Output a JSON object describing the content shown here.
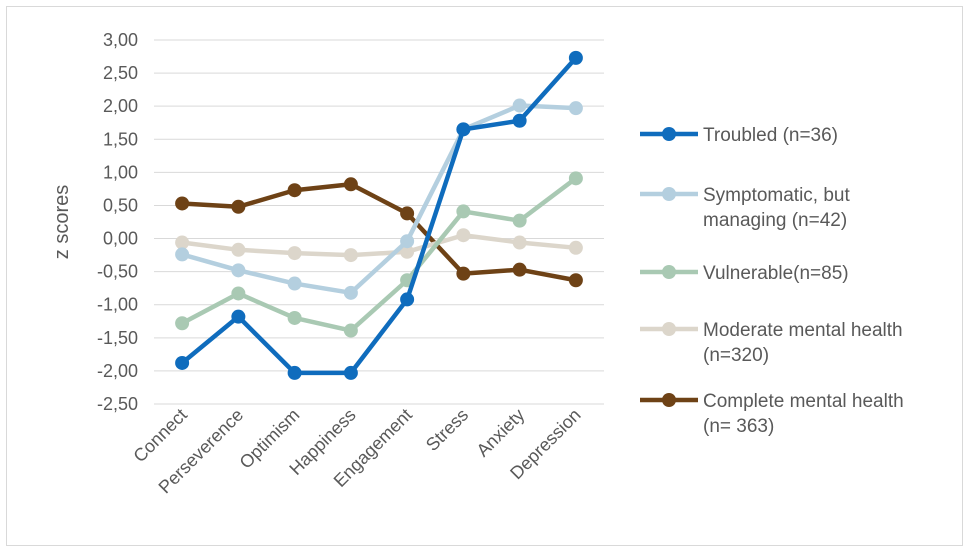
{
  "chart_data": {
    "type": "line",
    "ylabel": "z scores",
    "xlabel": "",
    "categories": [
      "Connect",
      "Perseverence",
      "Optimism",
      "Happiness",
      "Engagement",
      "Stress",
      "Anxiety",
      "Depression"
    ],
    "ylim": [
      -2.5,
      3.0
    ],
    "yticks": [
      "3,00",
      "2,50",
      "2,00",
      "1,50",
      "1,00",
      "0,50",
      "0,00",
      "-0,50",
      "-1,00",
      "-1,50",
      "-2,00",
      "-2,50"
    ],
    "grid": true,
    "legend_position": "right",
    "series": [
      {
        "name_lines": [
          "Troubled (n=36)"
        ],
        "color": "#0f6cbd",
        "values": [
          -1.88,
          -1.18,
          -2.03,
          -2.03,
          -0.92,
          1.65,
          1.78,
          2.73
        ]
      },
      {
        "name_lines": [
          "Symptomatic, but",
          "managing (n=42)"
        ],
        "color": "#b4cfdf",
        "values": [
          -0.24,
          -0.48,
          -0.68,
          -0.82,
          -0.04,
          1.65,
          2.01,
          1.97
        ]
      },
      {
        "name_lines": [
          "Vulnerable(n=85)"
        ],
        "color": "#a9c9b3",
        "values": [
          -1.28,
          -0.83,
          -1.2,
          -1.39,
          -0.63,
          0.41,
          0.27,
          0.91
        ]
      },
      {
        "name_lines": [
          "Moderate mental health",
          "(n=320)"
        ],
        "color": "#dcd6cb",
        "values": [
          -0.06,
          -0.17,
          -0.22,
          -0.25,
          -0.2,
          0.05,
          -0.06,
          -0.14
        ]
      },
      {
        "name_lines": [
          "Complete mental health",
          "(n= 363)"
        ],
        "color": "#6e4216",
        "values": [
          0.53,
          0.48,
          0.73,
          0.82,
          0.38,
          -0.53,
          -0.47,
          -0.63
        ]
      }
    ]
  }
}
